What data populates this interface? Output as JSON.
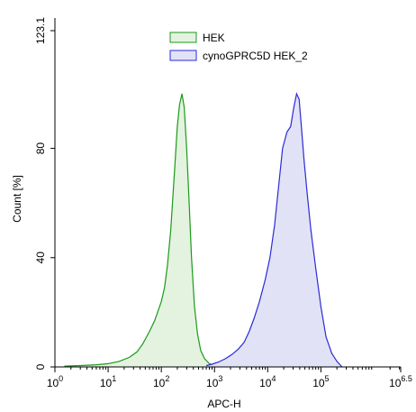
{
  "chart_data": {
    "type": "area",
    "xlabel": "APC-H",
    "ylabel": "Count [%]",
    "xscale": "log",
    "xlim": [
      1,
      3162277.66
    ],
    "ylim": [
      0,
      123.1
    ],
    "x_ticks": [
      {
        "value": 1,
        "base": "10",
        "exp": "0"
      },
      {
        "value": 10,
        "base": "10",
        "exp": "1"
      },
      {
        "value": 100,
        "base": "10",
        "exp": "2"
      },
      {
        "value": 1000,
        "base": "10",
        "exp": "3"
      },
      {
        "value": 10000,
        "base": "10",
        "exp": "4"
      },
      {
        "value": 100000,
        "base": "10",
        "exp": "5"
      },
      {
        "value": 3162277.66,
        "base": "10",
        "exp": "6.5"
      }
    ],
    "y_ticks": [
      {
        "value": 0,
        "label": "0"
      },
      {
        "value": 40,
        "label": "40"
      },
      {
        "value": 80,
        "label": "80"
      },
      {
        "value": 123.1,
        "label": "123.1"
      }
    ],
    "legend_position": "top-center",
    "series": [
      {
        "name": "HEK",
        "color": "#1a9b1a",
        "fill": "#e4f2e0",
        "x": [
          1.5,
          3,
          6,
          10,
          16,
          25,
          35,
          45,
          60,
          75,
          85,
          100,
          115,
          130,
          150,
          175,
          200,
          220,
          245,
          270,
          300,
          330,
          370,
          420,
          480,
          550,
          650,
          800,
          1000,
          1300
        ],
        "y": [
          0.3,
          0.5,
          0.8,
          1.2,
          2,
          3.5,
          5.5,
          8.5,
          13,
          17,
          20,
          24,
          29,
          37,
          50,
          70,
          88,
          96,
          100,
          95,
          80,
          62,
          40,
          22,
          12,
          6,
          3,
          1.2,
          0.5,
          0
        ]
      },
      {
        "name": "cynoGPRC5D HEK_2",
        "color": "#2a2ad8",
        "fill": "#e2e2f6",
        "x": [
          700,
          900,
          1200,
          1600,
          2100,
          2800,
          3600,
          4500,
          5600,
          7000,
          9000,
          11000,
          13500,
          16000,
          19000,
          23000,
          27000,
          31000,
          35000,
          39000,
          43000,
          48000,
          55000,
          65000,
          80000,
          100000,
          125000,
          160000,
          200000,
          250000
        ],
        "y": [
          0.5,
          1,
          1.8,
          3,
          4.5,
          6.5,
          9,
          13,
          18,
          24,
          32,
          40,
          52,
          66,
          80,
          86,
          88,
          95,
          100,
          98,
          88,
          76,
          64,
          50,
          36,
          22,
          11,
          5,
          2,
          0
        ]
      }
    ]
  }
}
